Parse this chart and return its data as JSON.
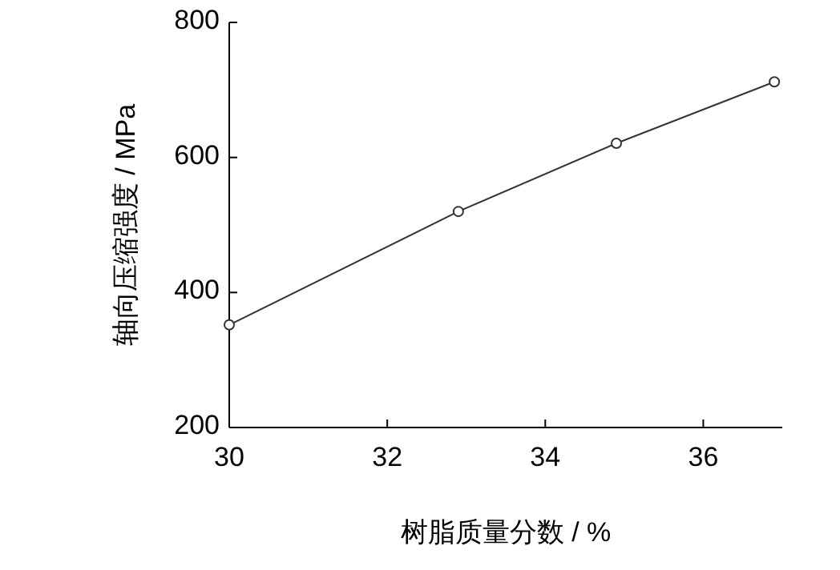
{
  "chart_data": {
    "type": "line",
    "xlabel": "树脂质量分数 / %",
    "ylabel": "轴向压缩强度 / MPa",
    "x": [
      30,
      32.9,
      34.9,
      36.9
    ],
    "series": [
      {
        "color": "#333333",
        "values": [
          352,
          520,
          621,
          712
        ]
      }
    ],
    "xlim": [
      30,
      37
    ],
    "xticks": [
      30,
      32,
      34,
      36
    ],
    "ylim": [
      200,
      800
    ],
    "yticks": [
      200,
      400,
      600,
      800
    ],
    "marker": "circle",
    "line_style": "solid",
    "grid": false
  }
}
